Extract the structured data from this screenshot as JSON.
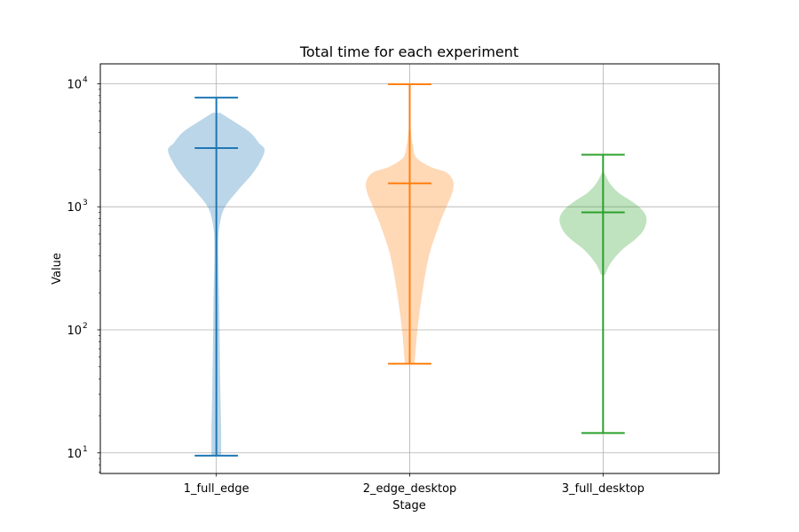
{
  "chart_data": {
    "type": "violin",
    "title": "Total time for each experiment",
    "xlabel": "Stage",
    "ylabel": "Value",
    "yscale": "log",
    "ylim": [
      6.8,
      14500
    ],
    "grid": true,
    "y_ticks": [
      {
        "value": 10,
        "base": "10",
        "exp": "1"
      },
      {
        "value": 100,
        "base": "10",
        "exp": "2"
      },
      {
        "value": 1000,
        "base": "10",
        "exp": "3"
      },
      {
        "value": 10000,
        "base": "10",
        "exp": "4"
      }
    ],
    "categories": [
      "1_full_edge",
      "2_edge_desktop",
      "3_full_desktop"
    ],
    "series": [
      {
        "category": "1_full_edge",
        "min": 9.5,
        "median": 3000,
        "max": 7700,
        "color": "#1f77b4",
        "fill": "#1f77b4",
        "density": [
          [
            9.6,
            0.05
          ],
          [
            15,
            0.05
          ],
          [
            40,
            0.04
          ],
          [
            150,
            0.03
          ],
          [
            500,
            0.02
          ],
          [
            750,
            0.04
          ],
          [
            1000,
            0.09
          ],
          [
            1350,
            0.22
          ],
          [
            1800,
            0.36
          ],
          [
            2300,
            0.45
          ],
          [
            2900,
            0.5
          ],
          [
            3300,
            0.44
          ],
          [
            3800,
            0.38
          ],
          [
            4300,
            0.3
          ],
          [
            5000,
            0.17
          ],
          [
            5800,
            0.04
          ]
        ]
      },
      {
        "category": "2_edge_desktop",
        "min": 53,
        "median": 1550,
        "max": 9900,
        "color": "#ff7f0e",
        "fill": "#ff7f0e",
        "density": [
          [
            53,
            0.05
          ],
          [
            65,
            0.06
          ],
          [
            100,
            0.08
          ],
          [
            200,
            0.13
          ],
          [
            400,
            0.2
          ],
          [
            700,
            0.3
          ],
          [
            1000,
            0.38
          ],
          [
            1300,
            0.44
          ],
          [
            1600,
            0.45
          ],
          [
            1900,
            0.38
          ],
          [
            2100,
            0.22
          ],
          [
            2500,
            0.07
          ],
          [
            3200,
            0.03
          ],
          [
            4300,
            0.01
          ]
        ]
      },
      {
        "category": "3_full_desktop",
        "min": 14.5,
        "median": 900,
        "max": 2650,
        "color": "#2ca02c",
        "fill": "#2ca02c",
        "density": [
          [
            280,
            0.02
          ],
          [
            350,
            0.08
          ],
          [
            450,
            0.2
          ],
          [
            550,
            0.34
          ],
          [
            650,
            0.42
          ],
          [
            800,
            0.45
          ],
          [
            950,
            0.4
          ],
          [
            1100,
            0.3
          ],
          [
            1300,
            0.16
          ],
          [
            1550,
            0.07
          ],
          [
            1900,
            0.01
          ]
        ]
      }
    ]
  }
}
